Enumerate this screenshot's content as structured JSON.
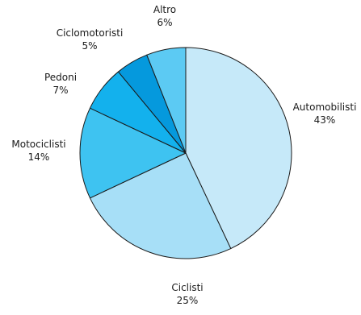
{
  "chart_data": {
    "type": "pie",
    "slices": [
      {
        "label": "Automobilisti",
        "pct_label": "43%",
        "value": 43,
        "color": "#c6e9f9"
      },
      {
        "label": "Ciclisti",
        "pct_label": "25%",
        "value": 25,
        "color": "#a7dff7"
      },
      {
        "label": "Motociclisti",
        "pct_label": "14%",
        "value": 14,
        "color": "#3ec3f1"
      },
      {
        "label": "Pedoni",
        "pct_label": "7%",
        "value": 7,
        "color": "#13b1ed"
      },
      {
        "label": "Ciclomotoristi",
        "pct_label": "5%",
        "value": 5,
        "color": "#0599dd"
      },
      {
        "label": "Altro",
        "pct_label": "6%",
        "value": 6,
        "color": "#5ccaf3"
      }
    ],
    "start_angle_deg": 0,
    "direction": "clockwise",
    "stroke_color": "#1a1a1a"
  }
}
